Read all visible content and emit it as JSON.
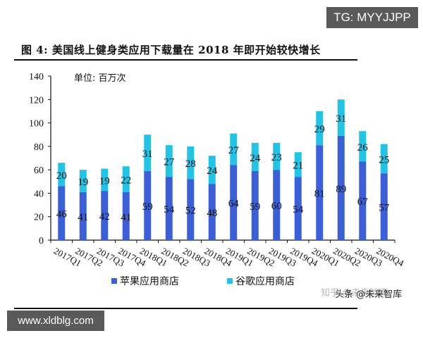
{
  "badges": {
    "top_right": "TG: MYYJJPP",
    "bottom_left": "www.xldblg.com"
  },
  "figure": {
    "title": "图 4:  美国线上健身类应用下载量在 2018 年即开始较快增长",
    "unit_label": "单位:  百万次",
    "watermark_ghost": "知乎 @未来智库",
    "watermark_front": "头条 @未来智库"
  },
  "colors": {
    "apple": "#3a5fd9",
    "google": "#22c4e6",
    "axis": "#111111"
  },
  "chart_data": {
    "type": "bar",
    "stacked": true,
    "title": "美国线上健身类应用下载量在 2018 年即开始较快增长",
    "subtitle": "单位:  百万次",
    "xlabel": "",
    "ylabel": "",
    "ylim": [
      0,
      140
    ],
    "yticks": [
      0,
      20,
      40,
      60,
      80,
      100,
      120,
      140
    ],
    "grid": false,
    "legend_position": "bottom",
    "categories": [
      "2017Q1",
      "2017Q2",
      "2017Q3",
      "2017Q4",
      "2018Q1",
      "2018Q2",
      "2018Q3",
      "2018Q4",
      "2019Q1",
      "2019Q2",
      "2019Q3",
      "2019Q4",
      "2020Q1",
      "2020Q2",
      "2020Q3",
      "2020Q4"
    ],
    "series": [
      {
        "name": "苹果应用商店",
        "color": "#3a5fd9",
        "values": [
          46,
          41,
          42,
          41,
          59,
          54,
          52,
          48,
          64,
          59,
          60,
          54,
          81,
          89,
          67,
          57
        ]
      },
      {
        "name": "谷歌应用商店",
        "color": "#22c4e6",
        "values": [
          20,
          19,
          19,
          22,
          31,
          27,
          28,
          24,
          27,
          24,
          23,
          21,
          29,
          31,
          26,
          25
        ]
      }
    ]
  }
}
